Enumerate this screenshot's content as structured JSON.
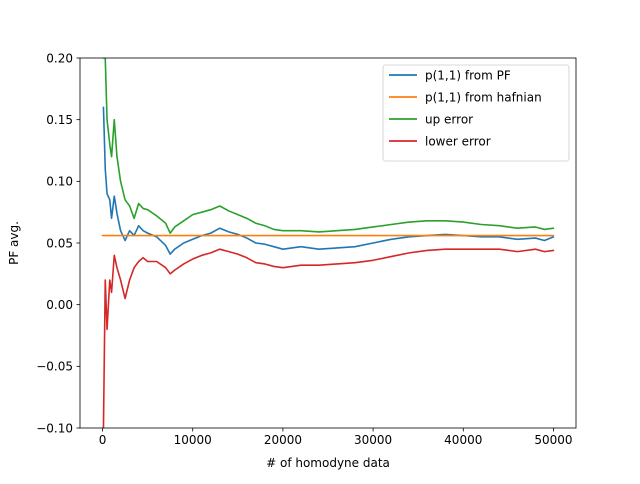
{
  "chart_data": {
    "type": "line",
    "title": "",
    "xlabel": "# of homodyne data",
    "ylabel": "PF avg.",
    "xlim": [
      -2500,
      52500
    ],
    "ylim": [
      -0.1,
      0.2
    ],
    "x_ticks": [
      0,
      10000,
      20000,
      30000,
      40000,
      50000
    ],
    "x_tick_labels": [
      "0",
      "10000",
      "20000",
      "30000",
      "40000",
      "50000"
    ],
    "y_ticks": [
      -0.1,
      -0.05,
      0.0,
      0.05,
      0.1,
      0.15,
      0.2
    ],
    "y_tick_labels": [
      "−0.10",
      "−0.05",
      "0.00",
      "0.05",
      "0.10",
      "0.15",
      "0.20"
    ],
    "grid": false,
    "legend_position": "top-right",
    "series": [
      {
        "name": "p(1,1) from PF",
        "color": "#1f77b4",
        "x": [
          100,
          300,
          500,
          800,
          1000,
          1300,
          1600,
          2000,
          2500,
          3000,
          3500,
          4000,
          4500,
          5000,
          6000,
          7000,
          7500,
          8000,
          9000,
          10000,
          11000,
          12000,
          13000,
          14000,
          15000,
          16000,
          17000,
          18000,
          19000,
          20000,
          22000,
          24000,
          26000,
          28000,
          30000,
          32000,
          34000,
          36000,
          38000,
          40000,
          42000,
          44000,
          46000,
          48000,
          49000,
          50000
        ],
        "y": [
          0.16,
          0.11,
          0.09,
          0.085,
          0.07,
          0.088,
          0.074,
          0.06,
          0.052,
          0.06,
          0.056,
          0.064,
          0.06,
          0.058,
          0.055,
          0.048,
          0.041,
          0.045,
          0.05,
          0.053,
          0.056,
          0.058,
          0.062,
          0.059,
          0.057,
          0.054,
          0.05,
          0.049,
          0.047,
          0.045,
          0.047,
          0.045,
          0.046,
          0.047,
          0.05,
          0.053,
          0.055,
          0.056,
          0.057,
          0.056,
          0.055,
          0.055,
          0.053,
          0.054,
          0.052,
          0.055
        ]
      },
      {
        "name": "p(1,1) from hafnian",
        "color": "#ff7f0e",
        "x": [
          0,
          50000
        ],
        "y": [
          0.056,
          0.056
        ]
      },
      {
        "name": "up error",
        "color": "#2ca02c",
        "x": [
          100,
          300,
          500,
          800,
          1000,
          1300,
          1600,
          2000,
          2500,
          3000,
          3500,
          4000,
          4500,
          5000,
          6000,
          7000,
          7500,
          8000,
          9000,
          10000,
          11000,
          12000,
          13000,
          14000,
          15000,
          16000,
          17000,
          18000,
          19000,
          20000,
          22000,
          24000,
          26000,
          28000,
          30000,
          32000,
          34000,
          36000,
          38000,
          40000,
          42000,
          44000,
          46000,
          48000,
          49000,
          50000
        ],
        "y": [
          0.2,
          0.2,
          0.15,
          0.13,
          0.12,
          0.15,
          0.12,
          0.1,
          0.085,
          0.08,
          0.07,
          0.082,
          0.078,
          0.077,
          0.072,
          0.066,
          0.058,
          0.063,
          0.068,
          0.073,
          0.075,
          0.077,
          0.08,
          0.076,
          0.073,
          0.07,
          0.066,
          0.064,
          0.061,
          0.06,
          0.06,
          0.059,
          0.06,
          0.061,
          0.063,
          0.065,
          0.067,
          0.068,
          0.068,
          0.067,
          0.065,
          0.064,
          0.062,
          0.063,
          0.061,
          0.062
        ]
      },
      {
        "name": "lower error",
        "color": "#d62728",
        "x": [
          100,
          300,
          500,
          800,
          1000,
          1300,
          1600,
          2000,
          2500,
          3000,
          3500,
          4000,
          4500,
          5000,
          6000,
          7000,
          7500,
          8000,
          9000,
          10000,
          11000,
          12000,
          13000,
          14000,
          15000,
          16000,
          17000,
          18000,
          19000,
          20000,
          22000,
          24000,
          26000,
          28000,
          30000,
          32000,
          34000,
          36000,
          38000,
          40000,
          42000,
          44000,
          46000,
          48000,
          49000,
          50000
        ],
        "y": [
          -0.1,
          0.02,
          -0.02,
          0.02,
          0.01,
          0.04,
          0.03,
          0.02,
          0.005,
          0.02,
          0.03,
          0.035,
          0.038,
          0.035,
          0.035,
          0.03,
          0.025,
          0.028,
          0.033,
          0.037,
          0.04,
          0.042,
          0.045,
          0.043,
          0.041,
          0.038,
          0.034,
          0.033,
          0.031,
          0.03,
          0.032,
          0.032,
          0.033,
          0.034,
          0.036,
          0.039,
          0.042,
          0.044,
          0.045,
          0.045,
          0.045,
          0.045,
          0.043,
          0.045,
          0.043,
          0.044
        ]
      }
    ]
  }
}
